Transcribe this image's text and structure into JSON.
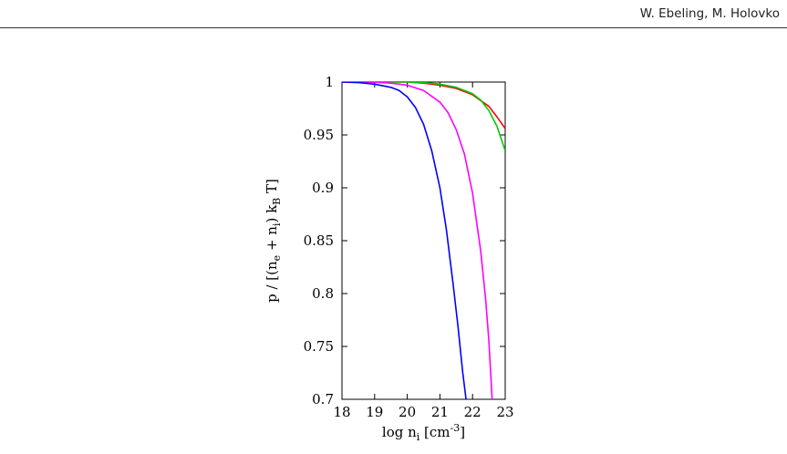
{
  "header": {
    "authors": "W. Ebeling, M. Holovko"
  },
  "chart_data": {
    "type": "line",
    "xlabel": {
      "base": "log n",
      "sub": "i",
      "unit_pre": " [cm",
      "sup": "-3",
      "unit_post": "]"
    },
    "ylabel": {
      "parts": [
        "p / [(n",
        "e",
        " + n",
        "i",
        ") k",
        "B",
        " T]"
      ]
    },
    "xlim": [
      18,
      23
    ],
    "ylim": [
      0.7,
      1.0
    ],
    "xticks": [
      "18",
      "19",
      "20",
      "21",
      "22",
      "23"
    ],
    "xtick_values": [
      18,
      19,
      20,
      21,
      22,
      23
    ],
    "yticks": [
      "0.7",
      "0.75",
      "0.8",
      "0.85",
      "0.9",
      "0.95",
      "1"
    ],
    "ytick_values": [
      0.7,
      0.75,
      0.8,
      0.85,
      0.9,
      0.95,
      1.0
    ],
    "grid": false,
    "series": [
      {
        "color": "#ff0000",
        "x": [
          18,
          19,
          20,
          20.5,
          21,
          21.5,
          22,
          22.5,
          22.75,
          23
        ],
        "y": [
          1.0,
          1.0,
          1.0,
          0.999,
          0.997,
          0.994,
          0.988,
          0.977,
          0.967,
          0.956
        ]
      },
      {
        "color": "#00cc00",
        "x": [
          18,
          19,
          20,
          20.5,
          21,
          21.5,
          22,
          22.25,
          22.5,
          22.75,
          23
        ],
        "y": [
          1.0,
          1.0,
          1.0,
          0.9995,
          0.998,
          0.995,
          0.989,
          0.983,
          0.973,
          0.958,
          0.935
        ]
      },
      {
        "color": "#ff00ff",
        "x": [
          18,
          19,
          19.5,
          20,
          20.5,
          21,
          21.25,
          21.5,
          21.75,
          22,
          22.25,
          22.4,
          22.5,
          22.6
        ],
        "y": [
          1.0,
          0.9998,
          0.999,
          0.997,
          0.992,
          0.981,
          0.971,
          0.955,
          0.932,
          0.895,
          0.84,
          0.795,
          0.755,
          0.7
        ]
      },
      {
        "color": "#0000ff",
        "x": [
          18,
          18.5,
          19,
          19.5,
          19.75,
          20,
          20.25,
          20.5,
          20.75,
          21,
          21.2,
          21.4,
          21.55,
          21.7,
          21.8
        ],
        "y": [
          1.0,
          0.9995,
          0.998,
          0.995,
          0.992,
          0.986,
          0.976,
          0.96,
          0.935,
          0.9,
          0.86,
          0.81,
          0.77,
          0.725,
          0.7
        ]
      }
    ]
  }
}
